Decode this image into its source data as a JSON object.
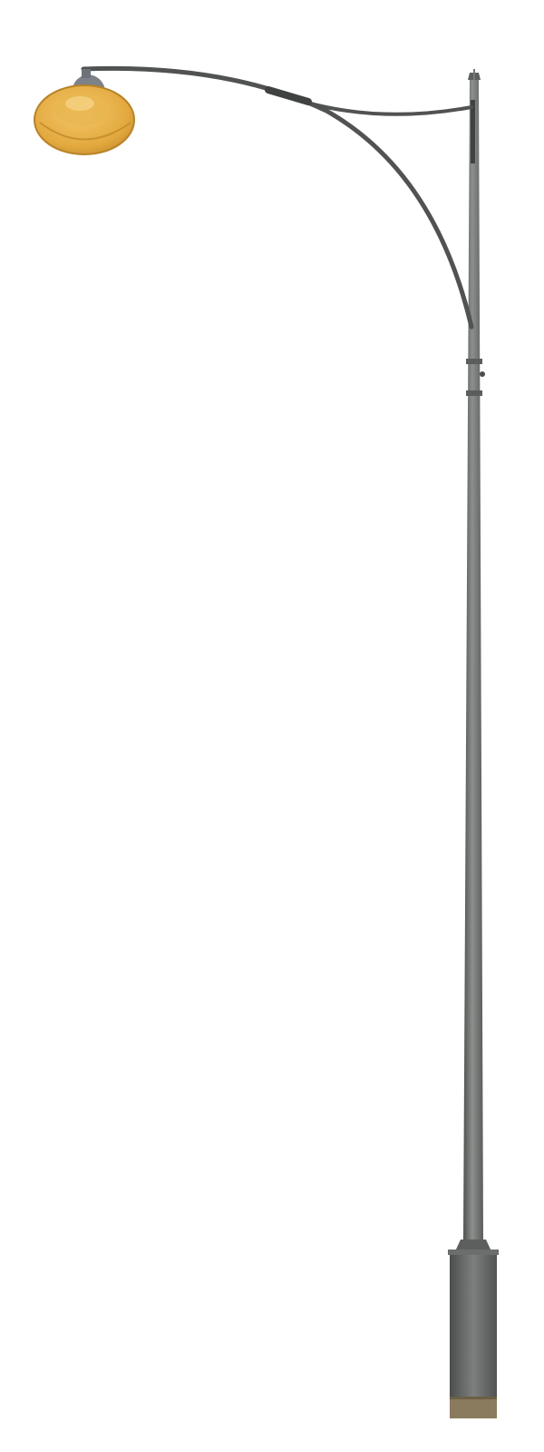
{
  "scene": {
    "subject": "street-lamp",
    "background_color": "#ffffff",
    "colors": {
      "pole": "#6e716f",
      "pole_shadow": "#4f5250",
      "pole_highlight": "#8c8f8c",
      "arm": "#505352",
      "lamp_shade": "#e8b24a",
      "lamp_shade_dark": "#c8902e",
      "lamp_cap": "#7c8288",
      "base_rust": "#8a7a5e"
    }
  }
}
